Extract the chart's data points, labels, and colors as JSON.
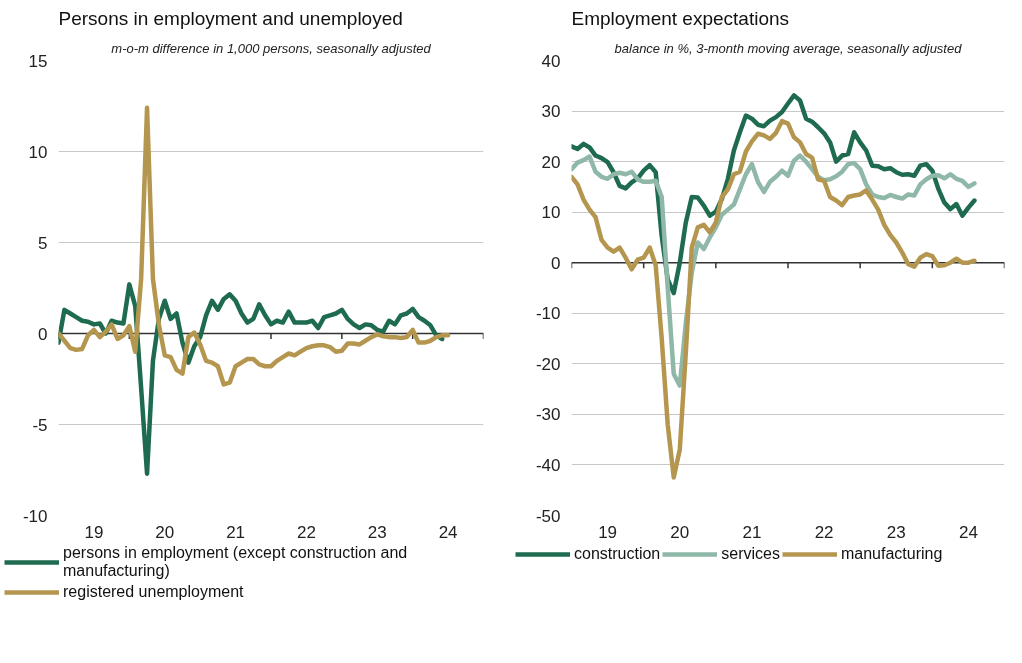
{
  "chart_data": [
    {
      "type": "line",
      "title": "Persons in employment and unemployed",
      "subtitle": "m-o-m difference in 1,000 persons, seasonally adjusted",
      "x": [
        "2019-01",
        "2019-02",
        "2019-03",
        "2019-04",
        "2019-05",
        "2019-06",
        "2019-07",
        "2019-08",
        "2019-09",
        "2019-10",
        "2019-11",
        "2019-12",
        "2020-01",
        "2020-02",
        "2020-03",
        "2020-04",
        "2020-05",
        "2020-06",
        "2020-07",
        "2020-08",
        "2020-09",
        "2020-10",
        "2020-11",
        "2020-12",
        "2021-01",
        "2021-02",
        "2021-03",
        "2021-04",
        "2021-05",
        "2021-06",
        "2021-07",
        "2021-08",
        "2021-09",
        "2021-10",
        "2021-11",
        "2021-12",
        "2022-01",
        "2022-02",
        "2022-03",
        "2022-04",
        "2022-05",
        "2022-06",
        "2022-07",
        "2022-08",
        "2022-09",
        "2022-10",
        "2022-11",
        "2022-12",
        "2023-01",
        "2023-02",
        "2023-03",
        "2023-04",
        "2023-05",
        "2023-06",
        "2023-07",
        "2023-08",
        "2023-09",
        "2023-10",
        "2023-11",
        "2023-12",
        "2024-01",
        "2024-02",
        "2024-03",
        "2024-04",
        "2024-05",
        "2024-06",
        "2024-07"
      ],
      "series": [
        {
          "name": "persons in employment (except construction and manufacturing)",
          "color": "#1e6b4f",
          "values": [
            -0.5,
            1.3,
            1.1,
            0.9,
            0.7,
            0.65,
            0.5,
            0.55,
            0.0,
            0.7,
            0.6,
            0.55,
            2.7,
            1.5,
            -3.0,
            -7.7,
            -1.5,
            0.8,
            1.8,
            0.8,
            1.1,
            -0.5,
            -1.6,
            -0.7,
            -0.2,
            1.0,
            1.8,
            1.3,
            1.9,
            2.15,
            1.8,
            1.1,
            0.6,
            0.8,
            1.6,
            1.0,
            0.5,
            0.7,
            0.6,
            1.2,
            0.6,
            0.6,
            0.6,
            0.7,
            0.3,
            0.9,
            1.0,
            1.1,
            1.3,
            0.8,
            0.5,
            0.3,
            0.5,
            0.45,
            0.2,
            0.1,
            0.7,
            0.5,
            1.0,
            1.1,
            1.35,
            0.9,
            0.7,
            0.45,
            -0.1,
            -0.3,
            null
          ]
        },
        {
          "name": "registered unemployment",
          "color": "#b5964f",
          "values": [
            0.0,
            -0.4,
            -0.8,
            -0.9,
            -0.85,
            -0.1,
            0.2,
            -0.2,
            0.1,
            0.5,
            -0.3,
            -0.1,
            0.4,
            -1.0,
            3.0,
            12.4,
            3.0,
            0.5,
            -1.2,
            -1.3,
            -2.0,
            -2.2,
            -0.2,
            0.05,
            -0.6,
            -1.5,
            -1.6,
            -1.8,
            -2.8,
            -2.7,
            -1.8,
            -1.6,
            -1.4,
            -1.4,
            -1.7,
            -1.8,
            -1.8,
            -1.5,
            -1.3,
            -1.1,
            -1.2,
            -1.0,
            -0.8,
            -0.7,
            -0.65,
            -0.65,
            -0.75,
            -1.0,
            -0.95,
            -0.55,
            -0.55,
            -0.6,
            -0.4,
            -0.2,
            -0.05,
            -0.15,
            -0.2,
            -0.2,
            -0.25,
            -0.2,
            0.2,
            -0.5,
            -0.5,
            -0.4,
            -0.2,
            -0.1,
            -0.1
          ]
        }
      ],
      "xlim": [
        "2019-01",
        "2025-01"
      ],
      "xticks": [
        {
          "value": "2019-01",
          "label": null
        },
        {
          "value": "2019-07",
          "label": "19"
        },
        {
          "value": "2020-01",
          "label": null
        },
        {
          "value": "2020-07",
          "label": "20"
        },
        {
          "value": "2021-01",
          "label": null
        },
        {
          "value": "2021-07",
          "label": "21"
        },
        {
          "value": "2022-01",
          "label": null
        },
        {
          "value": "2022-07",
          "label": "22"
        },
        {
          "value": "2023-01",
          "label": null
        },
        {
          "value": "2023-07",
          "label": "23"
        },
        {
          "value": "2024-01",
          "label": null
        },
        {
          "value": "2024-07",
          "label": "24"
        },
        {
          "value": "2025-01",
          "label": null
        }
      ],
      "ylim": [
        -10,
        15
      ],
      "yticks": [
        -10,
        -5,
        0,
        5,
        10,
        15
      ],
      "grid": "y",
      "legend": "bottom"
    },
    {
      "type": "line",
      "title": "Employment expectations",
      "subtitle": "balance in %, 3-month moving average, seasonally adjusted",
      "x": [
        "2019-01",
        "2019-02",
        "2019-03",
        "2019-04",
        "2019-05",
        "2019-06",
        "2019-07",
        "2019-08",
        "2019-09",
        "2019-10",
        "2019-11",
        "2019-12",
        "2020-01",
        "2020-02",
        "2020-03",
        "2020-04",
        "2020-05",
        "2020-06",
        "2020-07",
        "2020-08",
        "2020-09",
        "2020-10",
        "2020-11",
        "2020-12",
        "2021-01",
        "2021-02",
        "2021-03",
        "2021-04",
        "2021-05",
        "2021-06",
        "2021-07",
        "2021-08",
        "2021-09",
        "2021-10",
        "2021-11",
        "2021-12",
        "2022-01",
        "2022-02",
        "2022-03",
        "2022-04",
        "2022-05",
        "2022-06",
        "2022-07",
        "2022-08",
        "2022-09",
        "2022-10",
        "2022-11",
        "2022-12",
        "2023-01",
        "2023-02",
        "2023-03",
        "2023-04",
        "2023-05",
        "2023-06",
        "2023-07",
        "2023-08",
        "2023-09",
        "2023-10",
        "2023-11",
        "2023-12",
        "2024-01",
        "2024-02",
        "2024-03",
        "2024-04",
        "2024-05",
        "2024-06",
        "2024-07",
        "2024-08"
      ],
      "series": [
        {
          "name": "construction",
          "color": "#1e6b4f",
          "values": [
            23.0,
            22.5,
            23.5,
            22.8,
            21.2,
            20.7,
            19.9,
            17.9,
            15.2,
            14.7,
            15.9,
            16.7,
            18.2,
            19.3,
            17.9,
            5.3,
            -3.3,
            -6.0,
            0,
            7.9,
            13.0,
            12.9,
            11.3,
            9.3,
            10.1,
            12.6,
            16.6,
            22.2,
            25.8,
            29.1,
            28.5,
            27.3,
            27.0,
            28.1,
            28.8,
            29.8,
            31.5,
            33.1,
            32.1,
            28.5,
            27.9,
            26.8,
            25.6,
            23.8,
            20.0,
            21.2,
            21.5,
            25.8,
            23.8,
            22.2,
            19.2,
            19.1,
            18.5,
            18.7,
            17.9,
            17.4,
            17.5,
            17.2,
            19.2,
            19.5,
            18.2,
            14.6,
            11.9,
            10.6,
            11.6,
            9.3,
            10.9,
            12.3
          ]
        },
        {
          "name": "services",
          "color": "#8fb8a8",
          "values": [
            18.5,
            19.8,
            20.3,
            21.0,
            18.0,
            17.0,
            16.6,
            17.5,
            17.8,
            17.5,
            18.0,
            16.5,
            16.0,
            16.0,
            16.2,
            13.0,
            -5,
            -22,
            -24.3,
            -12,
            -2,
            4,
            2.7,
            5,
            7.0,
            9.5,
            10.5,
            11.5,
            14.5,
            17.5,
            19.5,
            16.0,
            14.0,
            16.0,
            17.0,
            18.2,
            17.2,
            20.2,
            21.2,
            20.0,
            18.5,
            17.0,
            16.3,
            16.5,
            17.1,
            18.0,
            19.5,
            19.7,
            18.5,
            15.5,
            13.5,
            13.0,
            12.8,
            13.4,
            13.0,
            12.7,
            13.5,
            13.3,
            15.5,
            16.5,
            17.2,
            17.3,
            16.7,
            17.5,
            16.6,
            16.2,
            15.0,
            15.7
          ]
        },
        {
          "name": "manufacturing",
          "color": "#b5964f",
          "values": [
            17.0,
            15.5,
            12.5,
            10.5,
            9.0,
            4.5,
            3.0,
            2.2,
            3.0,
            1.0,
            -1.3,
            0.6,
            1.0,
            3.0,
            -0.5,
            -15,
            -32,
            -42.5,
            -37,
            -18,
            3,
            7.0,
            7.5,
            6.0,
            8.0,
            13.0,
            14.5,
            17.5,
            18.0,
            22.0,
            24.0,
            25.5,
            25.2,
            24.5,
            25.7,
            28.0,
            27.5,
            24.8,
            23.8,
            21.5,
            20.8,
            16.5,
            16.2,
            13.0,
            12.3,
            11.4,
            13.0,
            13.3,
            13.5,
            14.3,
            12.5,
            10.5,
            7.5,
            5.5,
            4.0,
            2.0,
            -0.3,
            -0.8,
            1.0,
            1.7,
            1.3,
            -0.6,
            -0.5,
            0,
            0.8,
            0,
            0,
            0.4
          ]
        }
      ],
      "xlim": [
        "2019-01",
        "2025-01"
      ],
      "xticks": [
        {
          "value": "2019-01",
          "label": null
        },
        {
          "value": "2019-07",
          "label": "19"
        },
        {
          "value": "2020-01",
          "label": null
        },
        {
          "value": "2020-07",
          "label": "20"
        },
        {
          "value": "2021-01",
          "label": null
        },
        {
          "value": "2021-07",
          "label": "21"
        },
        {
          "value": "2022-01",
          "label": null
        },
        {
          "value": "2022-07",
          "label": "22"
        },
        {
          "value": "2023-01",
          "label": null
        },
        {
          "value": "2023-07",
          "label": "23"
        },
        {
          "value": "2024-01",
          "label": null
        },
        {
          "value": "2024-07",
          "label": "24"
        },
        {
          "value": "2025-01",
          "label": null
        }
      ],
      "ylim": [
        -50,
        40
      ],
      "yticks": [
        -50,
        -40,
        -30,
        -20,
        -10,
        0,
        10,
        20,
        30,
        40
      ],
      "grid": "y",
      "legend": "bottom"
    }
  ]
}
